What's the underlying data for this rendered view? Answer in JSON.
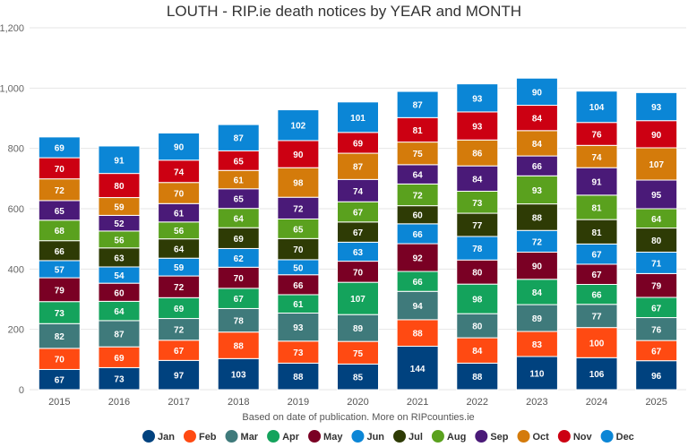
{
  "chart_data": {
    "type": "bar",
    "stacked": true,
    "title": "LOUTH - RIP.ie death notices by YEAR and MONTH",
    "caption": "Based on date of publication. More on RIPcounties.ie",
    "xlabel": "",
    "ylabel": "",
    "ylim": [
      0,
      1200
    ],
    "yticks": [
      0,
      200,
      400,
      600,
      800,
      1000,
      1200
    ],
    "ytick_labels": [
      "0",
      "200",
      "400",
      "600",
      "800",
      "1,000",
      "1,200"
    ],
    "grid": true,
    "legend_placement": "bottom",
    "categories": [
      "2015",
      "2016",
      "2017",
      "2018",
      "2019",
      "2020",
      "2021",
      "2022",
      "2023",
      "2024",
      "2025"
    ],
    "series": [
      {
        "name": "Jan",
        "color": "#00427f",
        "values": [
          67,
          73,
          97,
          103,
          88,
          85,
          144,
          88,
          110,
          106,
          96
        ]
      },
      {
        "name": "Feb",
        "color": "#ff4a12",
        "values": [
          70,
          69,
          67,
          88,
          73,
          75,
          88,
          84,
          83,
          100,
          67
        ]
      },
      {
        "name": "Mar",
        "color": "#3f7a7b",
        "values": [
          82,
          87,
          72,
          78,
          93,
          89,
          94,
          80,
          89,
          77,
          76
        ]
      },
      {
        "name": "Apr",
        "color": "#14a35c",
        "values": [
          73,
          64,
          69,
          67,
          61,
          107,
          66,
          98,
          84,
          66,
          67
        ]
      },
      {
        "name": "May",
        "color": "#7a0024",
        "values": [
          79,
          60,
          72,
          70,
          66,
          70,
          92,
          80,
          90,
          67,
          79
        ]
      },
      {
        "name": "Jun",
        "color": "#0b86d6",
        "values": [
          57,
          54,
          59,
          62,
          50,
          63,
          66,
          78,
          72,
          67,
          71
        ]
      },
      {
        "name": "Jul",
        "color": "#2e3b05",
        "values": [
          66,
          63,
          64,
          69,
          70,
          67,
          60,
          77,
          88,
          81,
          80
        ]
      },
      {
        "name": "Aug",
        "color": "#5aa11e",
        "values": [
          68,
          56,
          56,
          64,
          65,
          67,
          72,
          73,
          93,
          81,
          64
        ]
      },
      {
        "name": "Sep",
        "color": "#4a1a78",
        "values": [
          65,
          52,
          61,
          65,
          72,
          74,
          64,
          84,
          66,
          91,
          95
        ]
      },
      {
        "name": "Oct",
        "color": "#d47b0b",
        "values": [
          72,
          59,
          70,
          61,
          98,
          87,
          75,
          86,
          84,
          74,
          107
        ]
      },
      {
        "name": "Nov",
        "color": "#cc0012",
        "values": [
          70,
          80,
          74,
          65,
          90,
          69,
          81,
          93,
          84,
          76,
          90
        ]
      },
      {
        "name": "Dec",
        "color": "#0b86d6",
        "values": [
          69,
          91,
          90,
          87,
          102,
          101,
          87,
          93,
          90,
          104,
          93
        ]
      }
    ]
  }
}
